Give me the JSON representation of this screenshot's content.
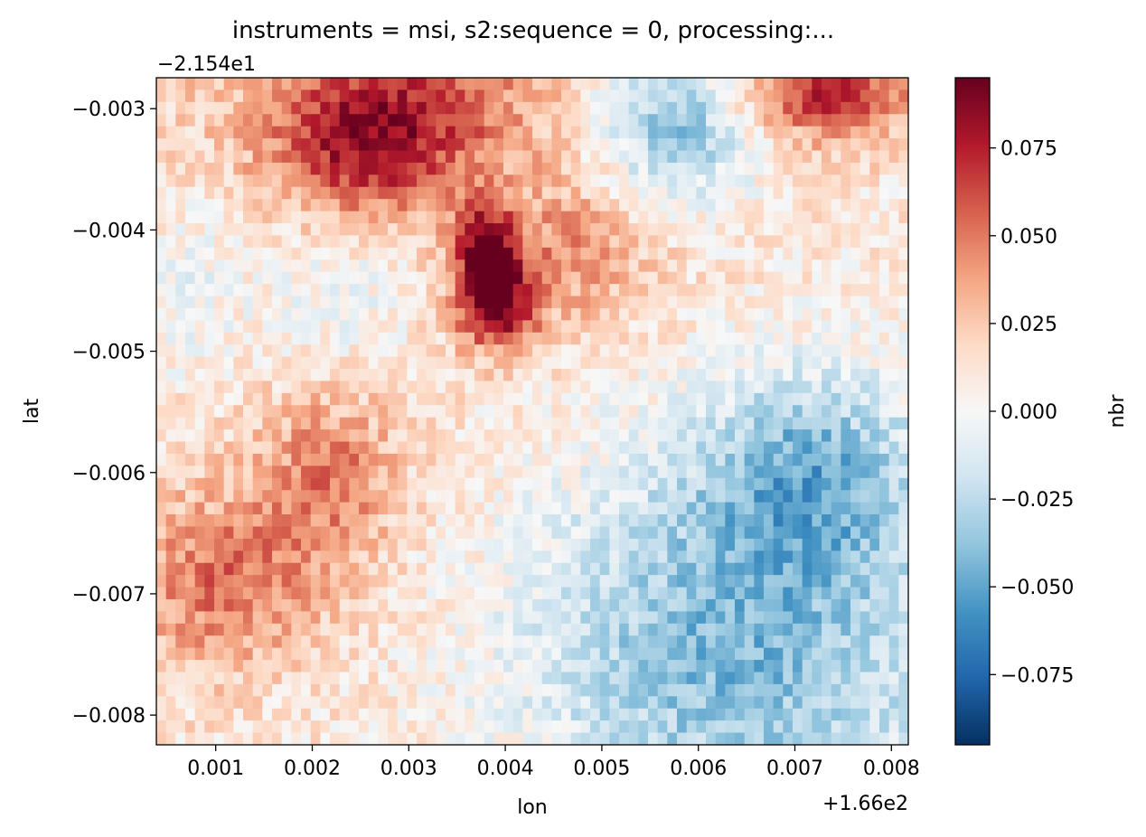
{
  "chart_data": {
    "type": "heatmap",
    "title": "instruments = msi, s2:sequence = 0, processing:...",
    "xlabel": "lon",
    "ylabel": "lat",
    "x_offset_label": "+1.66e2",
    "y_offset_label": "−2.154e1",
    "x_ticks": [
      0.001,
      0.002,
      0.003,
      0.004,
      0.005,
      0.006,
      0.007,
      0.008
    ],
    "x_tick_labels": [
      "0.001",
      "0.002",
      "0.003",
      "0.004",
      "0.005",
      "0.006",
      "0.007",
      "0.008"
    ],
    "y_ticks": [
      -0.003,
      -0.004,
      -0.005,
      -0.006,
      -0.007,
      -0.008
    ],
    "y_tick_labels": [
      "−0.003",
      "−0.004",
      "−0.005",
      "−0.006",
      "−0.007",
      "−0.008"
    ],
    "xlim": [
      0.000385,
      0.008175
    ],
    "ylim": [
      -0.008245,
      -0.002745
    ],
    "grid_cols": 78,
    "grid_rows": 55,
    "colormap": "RdBu_r",
    "colorbar": {
      "label": "nbr",
      "vmin": -0.095,
      "vmax": 0.095,
      "ticks": [
        0.075,
        0.05,
        0.025,
        0.0,
        -0.025,
        -0.05,
        -0.075
      ],
      "tick_labels": [
        "0.075",
        "0.050",
        "0.025",
        "0.000",
        "−0.025",
        "−0.050",
        "−0.075"
      ]
    },
    "features": [
      {
        "lon": 0.0038,
        "lat": -0.00415,
        "value": 0.08,
        "sx": 0.00022,
        "sy": 0.00025
      },
      {
        "lon": 0.0039,
        "lat": -0.00465,
        "value": 0.075,
        "sx": 0.0003,
        "sy": 0.00025
      },
      {
        "lon": 0.003,
        "lat": -0.003,
        "value": 0.045,
        "sx": 0.001,
        "sy": 0.0005
      },
      {
        "lon": 0.0025,
        "lat": -0.0034,
        "value": 0.04,
        "sx": 0.0006,
        "sy": 0.0004
      },
      {
        "lon": 0.0073,
        "lat": -0.00285,
        "value": 0.06,
        "sx": 0.0007,
        "sy": 0.0003
      },
      {
        "lon": 0.0011,
        "lat": -0.0069,
        "value": 0.04,
        "sx": 0.0007,
        "sy": 0.0005
      },
      {
        "lon": 0.0022,
        "lat": -0.006,
        "value": 0.035,
        "sx": 0.0005,
        "sy": 0.0005
      },
      {
        "lon": 0.0047,
        "lat": -0.0042,
        "value": 0.03,
        "sx": 0.0006,
        "sy": 0.0004
      },
      {
        "lon": 0.0058,
        "lat": -0.0031,
        "value": -0.055,
        "sx": 0.0006,
        "sy": 0.00045
      },
      {
        "lon": 0.0072,
        "lat": -0.006,
        "value": -0.045,
        "sx": 0.0008,
        "sy": 0.0006
      },
      {
        "lon": 0.0068,
        "lat": -0.0075,
        "value": -0.035,
        "sx": 0.0014,
        "sy": 0.001
      },
      {
        "lon": 0.0055,
        "lat": -0.0072,
        "value": -0.02,
        "sx": 0.0012,
        "sy": 0.0012
      },
      {
        "lon": 0.0022,
        "lat": -0.0045,
        "value": -0.02,
        "sx": 0.0006,
        "sy": 0.0005
      },
      {
        "lon": 0.0007,
        "lat": -0.0045,
        "value": -0.02,
        "sx": 0.0004,
        "sy": 0.0006
      }
    ]
  }
}
